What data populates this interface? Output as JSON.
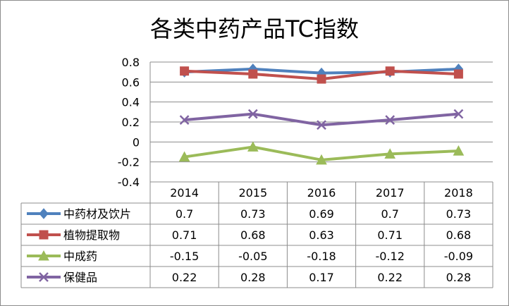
{
  "chart_data": {
    "type": "line",
    "title": "各类中药产品TC指数",
    "categories": [
      "2014",
      "2015",
      "2016",
      "2017",
      "2018"
    ],
    "ylim": [
      -0.4,
      0.8
    ],
    "yticks": [
      "0.8",
      "0.6",
      "0.4",
      "0.2",
      "0",
      "-0.2",
      "-0.4"
    ],
    "grid": true,
    "legend": "data-table",
    "series": [
      {
        "name": "中药材及饮片",
        "values": [
          0.7,
          0.73,
          0.69,
          0.7,
          0.73
        ],
        "labels": [
          "0.7",
          "0.73",
          "0.69",
          "0.7",
          "0.73"
        ],
        "color": "#4F81BD",
        "marker": "diamond"
      },
      {
        "name": "植物提取物",
        "values": [
          0.71,
          0.68,
          0.63,
          0.71,
          0.68
        ],
        "labels": [
          "0.71",
          "0.68",
          "0.63",
          "0.71",
          "0.68"
        ],
        "color": "#C0504D",
        "marker": "square"
      },
      {
        "name": "中成药",
        "values": [
          -0.15,
          -0.05,
          -0.18,
          -0.12,
          -0.09
        ],
        "labels": [
          "-0.15",
          "-0.05",
          "-0.18",
          "-0.12",
          "-0.09"
        ],
        "color": "#9BBB59",
        "marker": "triangle"
      },
      {
        "name": "保健品",
        "values": [
          0.22,
          0.28,
          0.17,
          0.22,
          0.28
        ],
        "labels": [
          "0.22",
          "0.28",
          "0.17",
          "0.22",
          "0.28"
        ],
        "color": "#8064A2",
        "marker": "x"
      }
    ]
  }
}
